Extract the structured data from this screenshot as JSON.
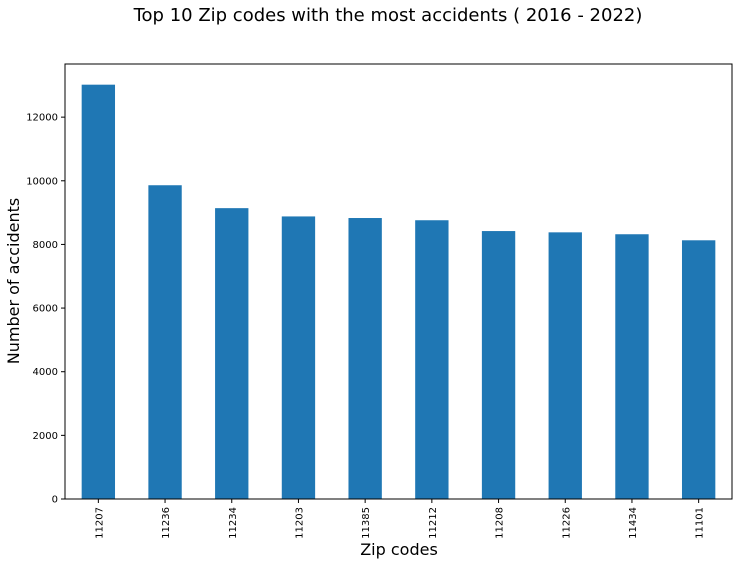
{
  "chart_data": {
    "type": "bar",
    "title": "Top 10 Zip codes with the most accidents ( 2016 - 2022)",
    "xlabel": "Zip codes",
    "ylabel": "Number of accidents",
    "categories": [
      "11207",
      "11236",
      "11234",
      "11203",
      "11385",
      "11212",
      "11208",
      "11226",
      "11434",
      "11101"
    ],
    "values": [
      13020,
      9860,
      9140,
      8880,
      8830,
      8760,
      8420,
      8380,
      8320,
      8130
    ],
    "ylim": [
      0,
      13670
    ],
    "yticks": [
      0,
      2000,
      4000,
      6000,
      8000,
      10000,
      12000
    ],
    "bar_color": "#1f77b4",
    "grid": false,
    "legend": "none"
  }
}
